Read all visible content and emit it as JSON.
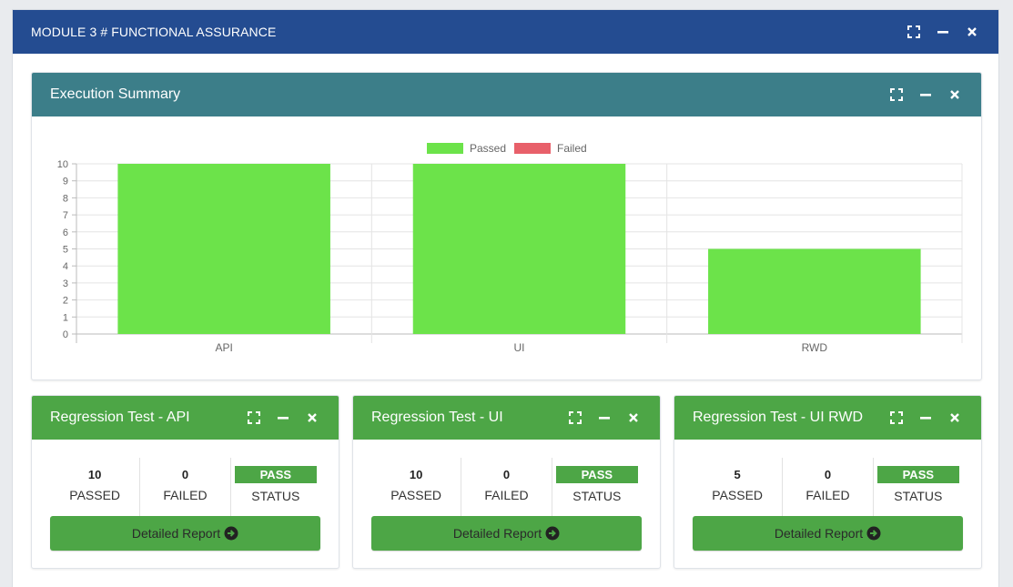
{
  "module": {
    "title": "MODULE 3 # FUNCTIONAL ASSURANCE"
  },
  "icons": {
    "expand": "expand-icon",
    "minimize": "minimize-icon",
    "close": "close-icon",
    "arrow": "arrow-circle-right-icon"
  },
  "colors": {
    "module_header": "#244c91",
    "summary_header": "#3c7e89",
    "regression_header": "#4da646",
    "passed": "#6ce34a",
    "failed": "#e8606a"
  },
  "summary": {
    "title": "Execution Summary",
    "chart_data": {
      "type": "bar",
      "categories": [
        "API",
        "UI",
        "RWD"
      ],
      "series": [
        {
          "name": "Passed",
          "values": [
            10,
            10,
            5
          ],
          "color": "#6ce34a"
        },
        {
          "name": "Failed",
          "values": [
            0,
            0,
            0
          ],
          "color": "#e8606a"
        }
      ],
      "ylim": [
        0,
        10
      ],
      "yticks": [
        "0",
        "1",
        "2",
        "3",
        "4",
        "5",
        "6",
        "7",
        "8",
        "9",
        "10"
      ],
      "grid": true,
      "legend": "top-center"
    }
  },
  "regressions": [
    {
      "title": "Regression Test - API",
      "passed": "10",
      "failed": "0",
      "status": "PASS",
      "passed_label": "PASSED",
      "failed_label": "FAILED",
      "status_label": "STATUS",
      "button": "Detailed Report"
    },
    {
      "title": "Regression Test - UI",
      "passed": "10",
      "failed": "0",
      "status": "PASS",
      "passed_label": "PASSED",
      "failed_label": "FAILED",
      "status_label": "STATUS",
      "button": "Detailed Report"
    },
    {
      "title": "Regression Test - UI RWD",
      "passed": "5",
      "failed": "0",
      "status": "PASS",
      "passed_label": "PASSED",
      "failed_label": "FAILED",
      "status_label": "STATUS",
      "button": "Detailed Report"
    }
  ]
}
